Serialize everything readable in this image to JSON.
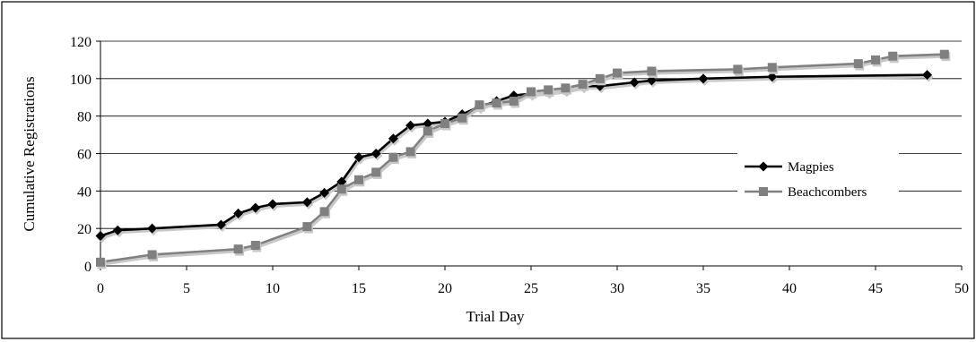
{
  "chart_data": {
    "type": "line",
    "title": "",
    "xlabel": "Trial Day",
    "ylabel": "Cumulative Registrations",
    "xlim": [
      0,
      50
    ],
    "ylim": [
      0,
      120
    ],
    "x_ticks": [
      "0",
      "5",
      "10",
      "15",
      "20",
      "25",
      "30",
      "35",
      "40",
      "45",
      "50"
    ],
    "y_ticks": [
      "0",
      "20",
      "40",
      "60",
      "80",
      "100",
      "120"
    ],
    "grid": "horizontal",
    "legend_position": "right",
    "series": [
      {
        "name": "Magpies",
        "color": "#000000",
        "marker": "diamond",
        "points": [
          [
            0,
            16
          ],
          [
            1,
            19
          ],
          [
            3,
            20
          ],
          [
            7,
            22
          ],
          [
            8,
            28
          ],
          [
            9,
            31
          ],
          [
            10,
            33
          ],
          [
            12,
            34
          ],
          [
            13,
            39
          ],
          [
            14,
            45
          ],
          [
            15,
            58
          ],
          [
            16,
            60
          ],
          [
            17,
            68
          ],
          [
            18,
            75
          ],
          [
            19,
            76
          ],
          [
            20,
            77
          ],
          [
            21,
            81
          ],
          [
            22,
            85
          ],
          [
            23,
            88
          ],
          [
            24,
            91
          ],
          [
            25,
            92
          ],
          [
            26,
            93
          ],
          [
            27,
            94
          ],
          [
            28,
            96
          ],
          [
            29,
            96
          ],
          [
            31,
            98
          ],
          [
            32,
            99
          ],
          [
            35,
            100
          ],
          [
            39,
            101
          ],
          [
            48,
            102
          ]
        ]
      },
      {
        "name": "Beachcombers",
        "color": "#808080",
        "marker": "square",
        "points": [
          [
            0,
            2
          ],
          [
            3,
            6
          ],
          [
            8,
            9
          ],
          [
            9,
            11
          ],
          [
            12,
            21
          ],
          [
            13,
            29
          ],
          [
            14,
            41
          ],
          [
            15,
            46
          ],
          [
            16,
            50
          ],
          [
            17,
            58
          ],
          [
            18,
            61
          ],
          [
            19,
            72
          ],
          [
            20,
            76
          ],
          [
            21,
            79
          ],
          [
            22,
            86
          ],
          [
            23,
            87
          ],
          [
            24,
            88
          ],
          [
            25,
            93
          ],
          [
            26,
            94
          ],
          [
            27,
            95
          ],
          [
            28,
            97
          ],
          [
            29,
            100
          ],
          [
            30,
            103
          ],
          [
            32,
            104
          ],
          [
            37,
            105
          ],
          [
            39,
            106
          ],
          [
            44,
            108
          ],
          [
            45,
            110
          ],
          [
            46,
            112
          ],
          [
            49,
            113
          ]
        ]
      }
    ]
  }
}
